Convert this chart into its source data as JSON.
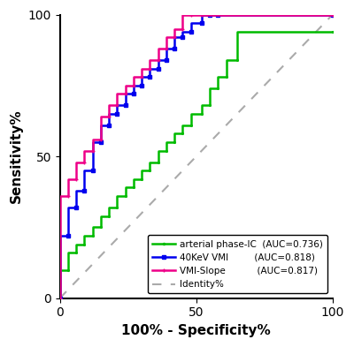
{
  "xlabel": "100% - Specificity%",
  "ylabel": "Sensitivity%",
  "xlim": [
    0,
    100
  ],
  "ylim": [
    0,
    100
  ],
  "xticks": [
    0,
    50,
    100
  ],
  "yticks": [
    0,
    50,
    100
  ],
  "identity_color": "#aaaaaa",
  "green_color": "#00bb00",
  "blue_color": "#0000ee",
  "pink_color": "#ee0088",
  "green_x": [
    0,
    0,
    3,
    3,
    6,
    6,
    9,
    9,
    12,
    12,
    15,
    15,
    18,
    18,
    21,
    21,
    24,
    24,
    27,
    27,
    30,
    30,
    33,
    33,
    36,
    36,
    39,
    39,
    42,
    42,
    45,
    45,
    48,
    48,
    52,
    52,
    55,
    55,
    58,
    58,
    61,
    61,
    65,
    65,
    100
  ],
  "green_y": [
    0,
    10,
    10,
    16,
    16,
    19,
    19,
    22,
    22,
    25,
    25,
    29,
    29,
    32,
    32,
    36,
    36,
    39,
    39,
    42,
    42,
    45,
    45,
    48,
    48,
    52,
    52,
    55,
    55,
    58,
    58,
    61,
    61,
    65,
    65,
    68,
    68,
    74,
    74,
    78,
    78,
    84,
    84,
    94,
    94
  ],
  "blue_x": [
    0,
    0,
    3,
    3,
    6,
    6,
    9,
    9,
    12,
    12,
    15,
    15,
    18,
    18,
    21,
    21,
    24,
    24,
    27,
    27,
    30,
    30,
    33,
    33,
    36,
    36,
    39,
    39,
    42,
    42,
    45,
    45,
    48,
    48,
    52,
    52,
    55,
    55,
    58,
    58,
    100
  ],
  "blue_y": [
    0,
    22,
    22,
    32,
    32,
    38,
    38,
    45,
    45,
    55,
    55,
    61,
    61,
    65,
    65,
    68,
    68,
    72,
    72,
    75,
    75,
    78,
    78,
    81,
    81,
    84,
    84,
    88,
    88,
    92,
    92,
    94,
    94,
    97,
    97,
    100,
    100,
    100,
    100,
    100,
    100
  ],
  "pink_x": [
    0,
    0,
    3,
    3,
    6,
    6,
    9,
    9,
    12,
    12,
    15,
    15,
    18,
    18,
    21,
    21,
    24,
    24,
    27,
    27,
    30,
    30,
    33,
    33,
    36,
    36,
    39,
    39,
    42,
    42,
    45,
    45,
    48,
    48,
    52,
    52,
    100
  ],
  "pink_y": [
    0,
    36,
    36,
    42,
    42,
    48,
    48,
    52,
    52,
    56,
    56,
    64,
    64,
    68,
    68,
    72,
    72,
    75,
    75,
    78,
    78,
    81,
    81,
    84,
    84,
    88,
    88,
    92,
    92,
    95,
    95,
    100,
    100,
    100,
    100,
    100,
    100
  ],
  "figsize": [
    4.0,
    3.93
  ],
  "dpi": 100
}
